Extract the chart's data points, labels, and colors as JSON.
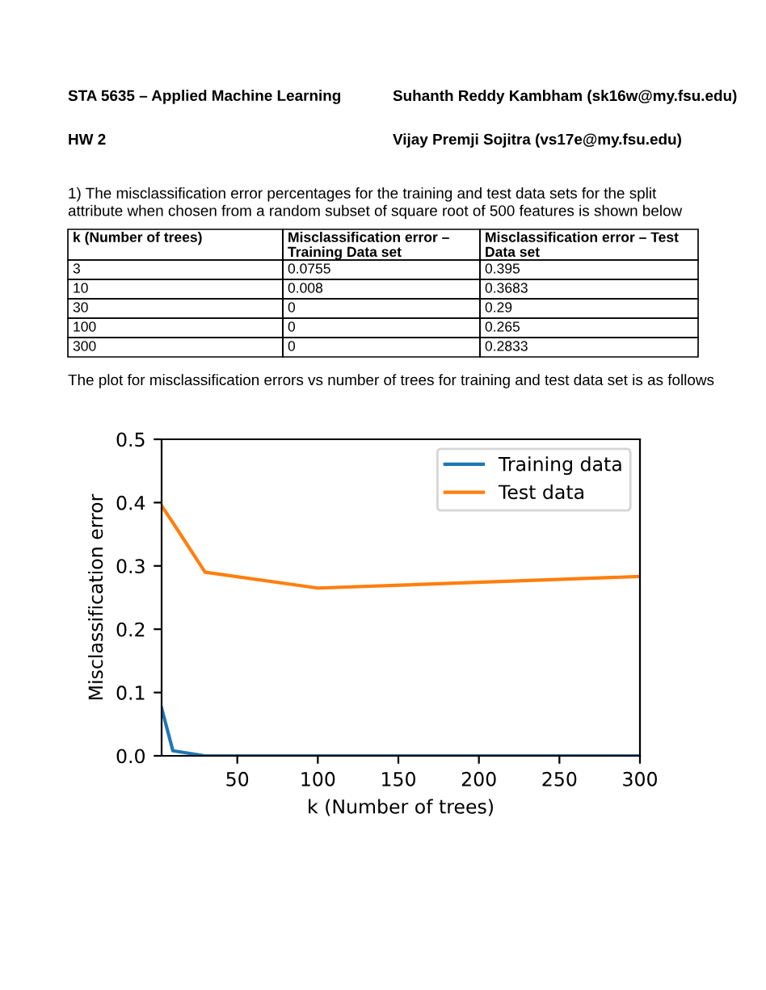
{
  "chart_data": [
    {
      "type": "other",
      "annotations": [
        "STA 5635 – Applied Machine Learning",
        "Suhanth Reddy Kambham (sk16w@my.fsu.edu)",
        "HW 2",
        "Vijay Premji Sojitra (vs17e@my.fsu.edu)",
        "1) The misclassification error percentages for the training and test data sets for the split attribute when chosen from a random subset of square root of 500 features is shown below",
        "k (Number of trees)",
        "Misclassification error – Training Data set",
        "Misclassification error – Test Data set",
        "3",
        "0.0755",
        "0.395",
        "10",
        "0.008",
        "0.3683",
        "30",
        "0",
        "0.29",
        "100",
        "0",
        "0.265",
        "300",
        "0",
        "0.2833",
        "The plot for misclassification errors vs number of trees for training and test data set is as follows"
      ]
    },
    {
      "type": "line",
      "xlabel": "k (Number of trees)",
      "ylabel": "Misclassification error",
      "x": [
        3,
        10,
        30,
        100,
        300
      ],
      "series": [
        {
          "name": "Training data",
          "color": "#1f77b4",
          "values": [
            0.0755,
            0.008,
            0,
            0,
            0
          ]
        },
        {
          "name": "Test data",
          "color": "#ff7f0e",
          "values": [
            0.395,
            0.3683,
            0.29,
            0.265,
            0.2833
          ]
        }
      ],
      "xlim": [
        3,
        300
      ],
      "xticks": [
        50,
        100,
        150,
        200,
        250,
        300
      ],
      "ylim": [
        0,
        0.5
      ],
      "yticks": [
        {
          "value": 0,
          "label": "0.0"
        },
        0.1,
        0.2,
        0.3,
        0.4,
        0.5
      ],
      "legend": "top right",
      "grid": false
    }
  ]
}
